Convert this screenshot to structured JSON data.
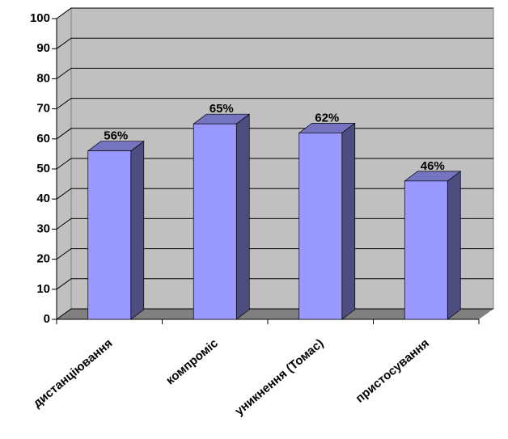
{
  "chart_data": {
    "type": "bar",
    "categories": [
      "дистанціювання",
      "компроміс",
      "уникнення (Томас)",
      "пристосування"
    ],
    "values": [
      56,
      65,
      62,
      46
    ],
    "value_labels": [
      "56%",
      "65%",
      "62%",
      "46%"
    ],
    "color": "#9999ff",
    "ylim": [
      0,
      100
    ],
    "yticks": [
      0,
      10,
      20,
      30,
      40,
      50,
      60,
      70,
      80,
      90,
      100
    ],
    "grid": true
  }
}
